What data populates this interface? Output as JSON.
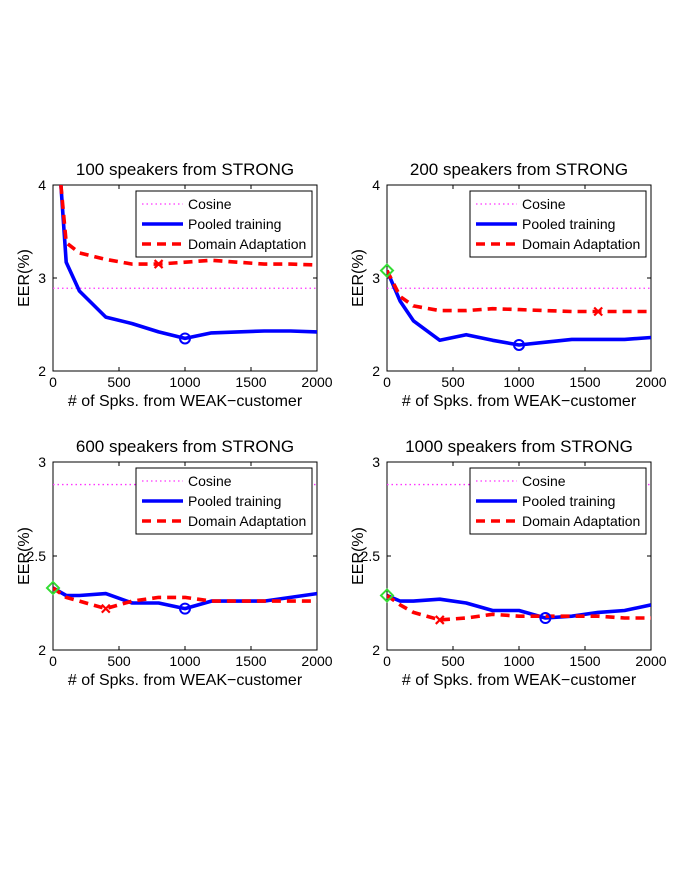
{
  "chart_data": [
    {
      "type": "line",
      "title": "100 speakers from STRONG",
      "xlabel": "# of Spks. from WEAK−customer",
      "ylabel": "EER(%)",
      "xlim": [
        0,
        2000
      ],
      "ylim": [
        2,
        4
      ],
      "xticks": [
        0,
        500,
        1000,
        1500,
        2000
      ],
      "yticks": [
        2,
        3,
        4
      ],
      "xtick_labels": [
        "0",
        "500",
        "1000",
        "1500",
        "2000"
      ],
      "ytick_labels": [
        "2",
        "3",
        "4"
      ],
      "grid": false,
      "legend_position": "top-right",
      "cosine": 2.89,
      "series": [
        {
          "name": "Pooled training",
          "color": "#0000ff",
          "style": "solid",
          "x": [
            60,
            100,
            200,
            400,
            600,
            800,
            1000,
            1200,
            1400,
            1600,
            1800,
            2000
          ],
          "y": [
            4.0,
            3.17,
            2.86,
            2.58,
            2.51,
            2.42,
            2.35,
            2.41,
            2.42,
            2.43,
            2.43,
            2.42
          ]
        },
        {
          "name": "Domain Adaptation",
          "color": "#ff0000",
          "style": "dashed",
          "x": [
            60,
            100,
            200,
            400,
            600,
            800,
            1000,
            1200,
            1400,
            1600,
            1800,
            2000
          ],
          "y": [
            4.0,
            3.38,
            3.27,
            3.2,
            3.15,
            3.15,
            3.17,
            3.19,
            3.17,
            3.15,
            3.15,
            3.14
          ]
        }
      ],
      "markers": [
        {
          "series": "Pooled training",
          "shape": "circle",
          "x": 1000,
          "y": 2.35,
          "color": "#0000ff"
        },
        {
          "series": "Domain Adaptation",
          "shape": "cross",
          "x": 800,
          "y": 3.15,
          "color": "#ff0000"
        }
      ]
    },
    {
      "type": "line",
      "title": "200 speakers from STRONG",
      "xlabel": "# of Spks. from WEAK−customer",
      "ylabel": "EER(%)",
      "xlim": [
        0,
        2000
      ],
      "ylim": [
        2,
        4
      ],
      "xticks": [
        0,
        500,
        1000,
        1500,
        2000
      ],
      "yticks": [
        2,
        3,
        4
      ],
      "xtick_labels": [
        "0",
        "500",
        "1000",
        "1500",
        "2000"
      ],
      "ytick_labels": [
        "2",
        "3",
        "4"
      ],
      "grid": false,
      "legend_position": "top-right",
      "cosine": 2.89,
      "series": [
        {
          "name": "Pooled training",
          "color": "#0000ff",
          "style": "solid",
          "x": [
            0,
            100,
            200,
            400,
            600,
            800,
            1000,
            1200,
            1400,
            1600,
            1800,
            2000
          ],
          "y": [
            3.08,
            2.75,
            2.54,
            2.33,
            2.39,
            2.33,
            2.28,
            2.31,
            2.34,
            2.34,
            2.34,
            2.36
          ]
        },
        {
          "name": "Domain Adaptation",
          "color": "#ff0000",
          "style": "dashed",
          "x": [
            0,
            100,
            200,
            400,
            600,
            800,
            1000,
            1200,
            1400,
            1600,
            1800,
            2000
          ],
          "y": [
            3.08,
            2.8,
            2.7,
            2.65,
            2.65,
            2.67,
            2.66,
            2.65,
            2.64,
            2.64,
            2.64,
            2.64
          ]
        }
      ],
      "markers": [
        {
          "series": "start",
          "shape": "diamond",
          "x": 0,
          "y": 3.08,
          "color": "#33dd33"
        },
        {
          "series": "Pooled training",
          "shape": "circle",
          "x": 1000,
          "y": 2.28,
          "color": "#0000ff"
        },
        {
          "series": "Domain Adaptation",
          "shape": "cross",
          "x": 1600,
          "y": 2.64,
          "color": "#ff0000"
        }
      ]
    },
    {
      "type": "line",
      "title": "600 speakers from STRONG",
      "xlabel": "# of Spks. from WEAK−customer",
      "ylabel": "EER(%)",
      "xlim": [
        0,
        2000
      ],
      "ylim": [
        2,
        3
      ],
      "xticks": [
        0,
        500,
        1000,
        1500,
        2000
      ],
      "yticks": [
        2,
        2.5,
        3
      ],
      "xtick_labels": [
        "0",
        "500",
        "1000",
        "1500",
        "2000"
      ],
      "ytick_labels": [
        "2",
        "2.5",
        "3"
      ],
      "grid": false,
      "legend_position": "top-right",
      "cosine": 2.88,
      "series": [
        {
          "name": "Pooled training",
          "color": "#0000ff",
          "style": "solid",
          "x": [
            0,
            100,
            200,
            400,
            600,
            800,
            1000,
            1200,
            1400,
            1600,
            1800,
            2000
          ],
          "y": [
            2.33,
            2.29,
            2.29,
            2.3,
            2.25,
            2.25,
            2.22,
            2.26,
            2.26,
            2.26,
            2.28,
            2.3
          ]
        },
        {
          "name": "Domain Adaptation",
          "color": "#ff0000",
          "style": "dashed",
          "x": [
            0,
            100,
            200,
            400,
            600,
            800,
            1000,
            1200,
            1400,
            1600,
            1800,
            2000
          ],
          "y": [
            2.33,
            2.28,
            2.26,
            2.22,
            2.26,
            2.28,
            2.28,
            2.26,
            2.26,
            2.26,
            2.26,
            2.26
          ]
        }
      ],
      "markers": [
        {
          "series": "start",
          "shape": "diamond",
          "x": 0,
          "y": 2.33,
          "color": "#33dd33"
        },
        {
          "series": "Pooled training",
          "shape": "circle",
          "x": 1000,
          "y": 2.22,
          "color": "#0000ff"
        },
        {
          "series": "Domain Adaptation",
          "shape": "cross",
          "x": 400,
          "y": 2.22,
          "color": "#ff0000"
        }
      ]
    },
    {
      "type": "line",
      "title": "1000 speakers from STRONG",
      "xlabel": "# of Spks. from WEAK−customer",
      "ylabel": "EER(%)",
      "xlim": [
        0,
        2000
      ],
      "ylim": [
        2,
        3
      ],
      "xticks": [
        0,
        500,
        1000,
        1500,
        2000
      ],
      "yticks": [
        2,
        2.5,
        3
      ],
      "xtick_labels": [
        "0",
        "500",
        "1000",
        "1500",
        "2000"
      ],
      "ytick_labels": [
        "2",
        "2.5",
        "3"
      ],
      "grid": false,
      "legend_position": "top-right",
      "cosine": 2.88,
      "series": [
        {
          "name": "Pooled training",
          "color": "#0000ff",
          "style": "solid",
          "x": [
            0,
            100,
            200,
            400,
            600,
            800,
            1000,
            1200,
            1400,
            1600,
            1800,
            2000
          ],
          "y": [
            2.29,
            2.26,
            2.26,
            2.27,
            2.25,
            2.21,
            2.21,
            2.17,
            2.18,
            2.2,
            2.21,
            2.24
          ]
        },
        {
          "name": "Domain Adaptation",
          "color": "#ff0000",
          "style": "dashed",
          "x": [
            0,
            100,
            200,
            400,
            600,
            800,
            1000,
            1200,
            1400,
            1600,
            1800,
            2000
          ],
          "y": [
            2.29,
            2.24,
            2.2,
            2.16,
            2.17,
            2.19,
            2.18,
            2.18,
            2.18,
            2.18,
            2.17,
            2.17
          ]
        }
      ],
      "markers": [
        {
          "series": "start",
          "shape": "diamond",
          "x": 0,
          "y": 2.29,
          "color": "#33dd33"
        },
        {
          "series": "Pooled training",
          "shape": "circle",
          "x": 1200,
          "y": 2.17,
          "color": "#0000ff"
        },
        {
          "series": "Domain Adaptation",
          "shape": "cross",
          "x": 400,
          "y": 2.16,
          "color": "#ff0000"
        }
      ]
    }
  ],
  "legend": {
    "cosine_label": "Cosine",
    "cosine_color": "#ff33ff",
    "pooled_label": "Pooled training",
    "da_label": "Domain Adaptation"
  }
}
